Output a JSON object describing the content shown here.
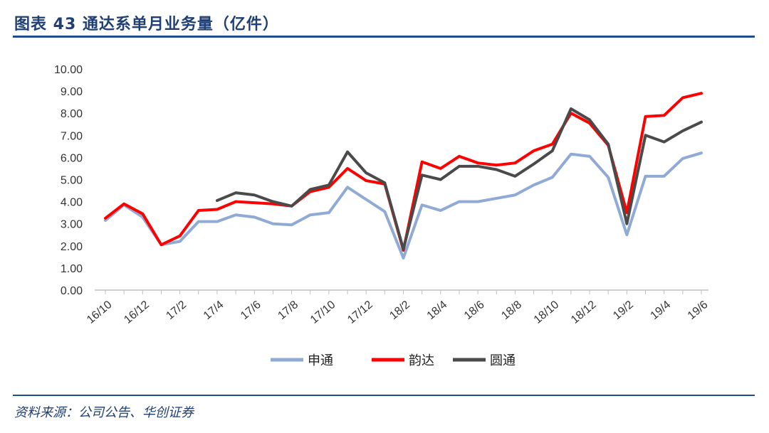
{
  "figure_title": "图表 43   通达系单月业务量（亿件）",
  "source_note": "资料来源：公司公告、华创证券",
  "chart_data": {
    "type": "line",
    "title": "",
    "xlabel": "",
    "ylabel": "",
    "ylim": [
      0,
      10
    ],
    "y_ticks": [
      "0.00",
      "1.00",
      "2.00",
      "3.00",
      "4.00",
      "5.00",
      "6.00",
      "7.00",
      "8.00",
      "9.00",
      "10.00"
    ],
    "x_tick_labels": [
      "16/10",
      "16/12",
      "17/2",
      "17/4",
      "17/6",
      "17/8",
      "17/10",
      "17/12",
      "18/2",
      "18/4",
      "18/6",
      "18/8",
      "18/10",
      "18/12",
      "19/2",
      "19/4",
      "19/6"
    ],
    "categories": [
      "16/10",
      "16/11",
      "16/12",
      "17/1",
      "17/2",
      "17/3",
      "17/4",
      "17/5",
      "17/6",
      "17/7",
      "17/8",
      "17/9",
      "17/10",
      "17/11",
      "17/12",
      "18/1",
      "18/2",
      "18/3",
      "18/4",
      "18/5",
      "18/6",
      "18/7",
      "18/8",
      "18/9",
      "18/10",
      "18/11",
      "18/12",
      "19/1",
      "19/2",
      "19/3",
      "19/4",
      "19/5",
      "19/6"
    ],
    "grid": false,
    "legend_position": "bottom",
    "series": [
      {
        "name": "申通",
        "color": "#8eaad5",
        "values": [
          3.15,
          3.85,
          3.3,
          2.05,
          2.2,
          3.1,
          3.1,
          3.4,
          3.3,
          3.0,
          2.95,
          3.4,
          3.5,
          4.65,
          4.1,
          3.55,
          1.45,
          3.85,
          3.6,
          4.0,
          4.0,
          4.15,
          4.3,
          4.75,
          5.1,
          6.15,
          6.05,
          5.1,
          2.5,
          5.15,
          5.15,
          5.95,
          6.2
        ]
      },
      {
        "name": "韵达",
        "color": "#ff0000",
        "values": [
          3.25,
          3.9,
          3.45,
          2.05,
          2.45,
          3.6,
          3.65,
          4.0,
          3.95,
          3.9,
          3.8,
          4.45,
          4.65,
          5.5,
          4.95,
          4.8,
          1.8,
          5.8,
          5.5,
          6.05,
          5.75,
          5.65,
          5.75,
          6.3,
          6.6,
          8.0,
          7.55,
          6.55,
          3.5,
          7.85,
          7.9,
          8.7,
          8.9
        ]
      },
      {
        "name": "圆通",
        "color": "#4a4a4a",
        "values": [
          null,
          null,
          null,
          null,
          null,
          null,
          4.05,
          4.4,
          4.3,
          4.0,
          3.8,
          4.55,
          4.75,
          6.25,
          5.3,
          4.85,
          1.85,
          5.2,
          5.0,
          5.6,
          5.6,
          5.45,
          5.15,
          5.7,
          6.3,
          8.2,
          7.7,
          6.6,
          3.0,
          7.0,
          6.7,
          7.2,
          7.6
        ]
      }
    ]
  }
}
